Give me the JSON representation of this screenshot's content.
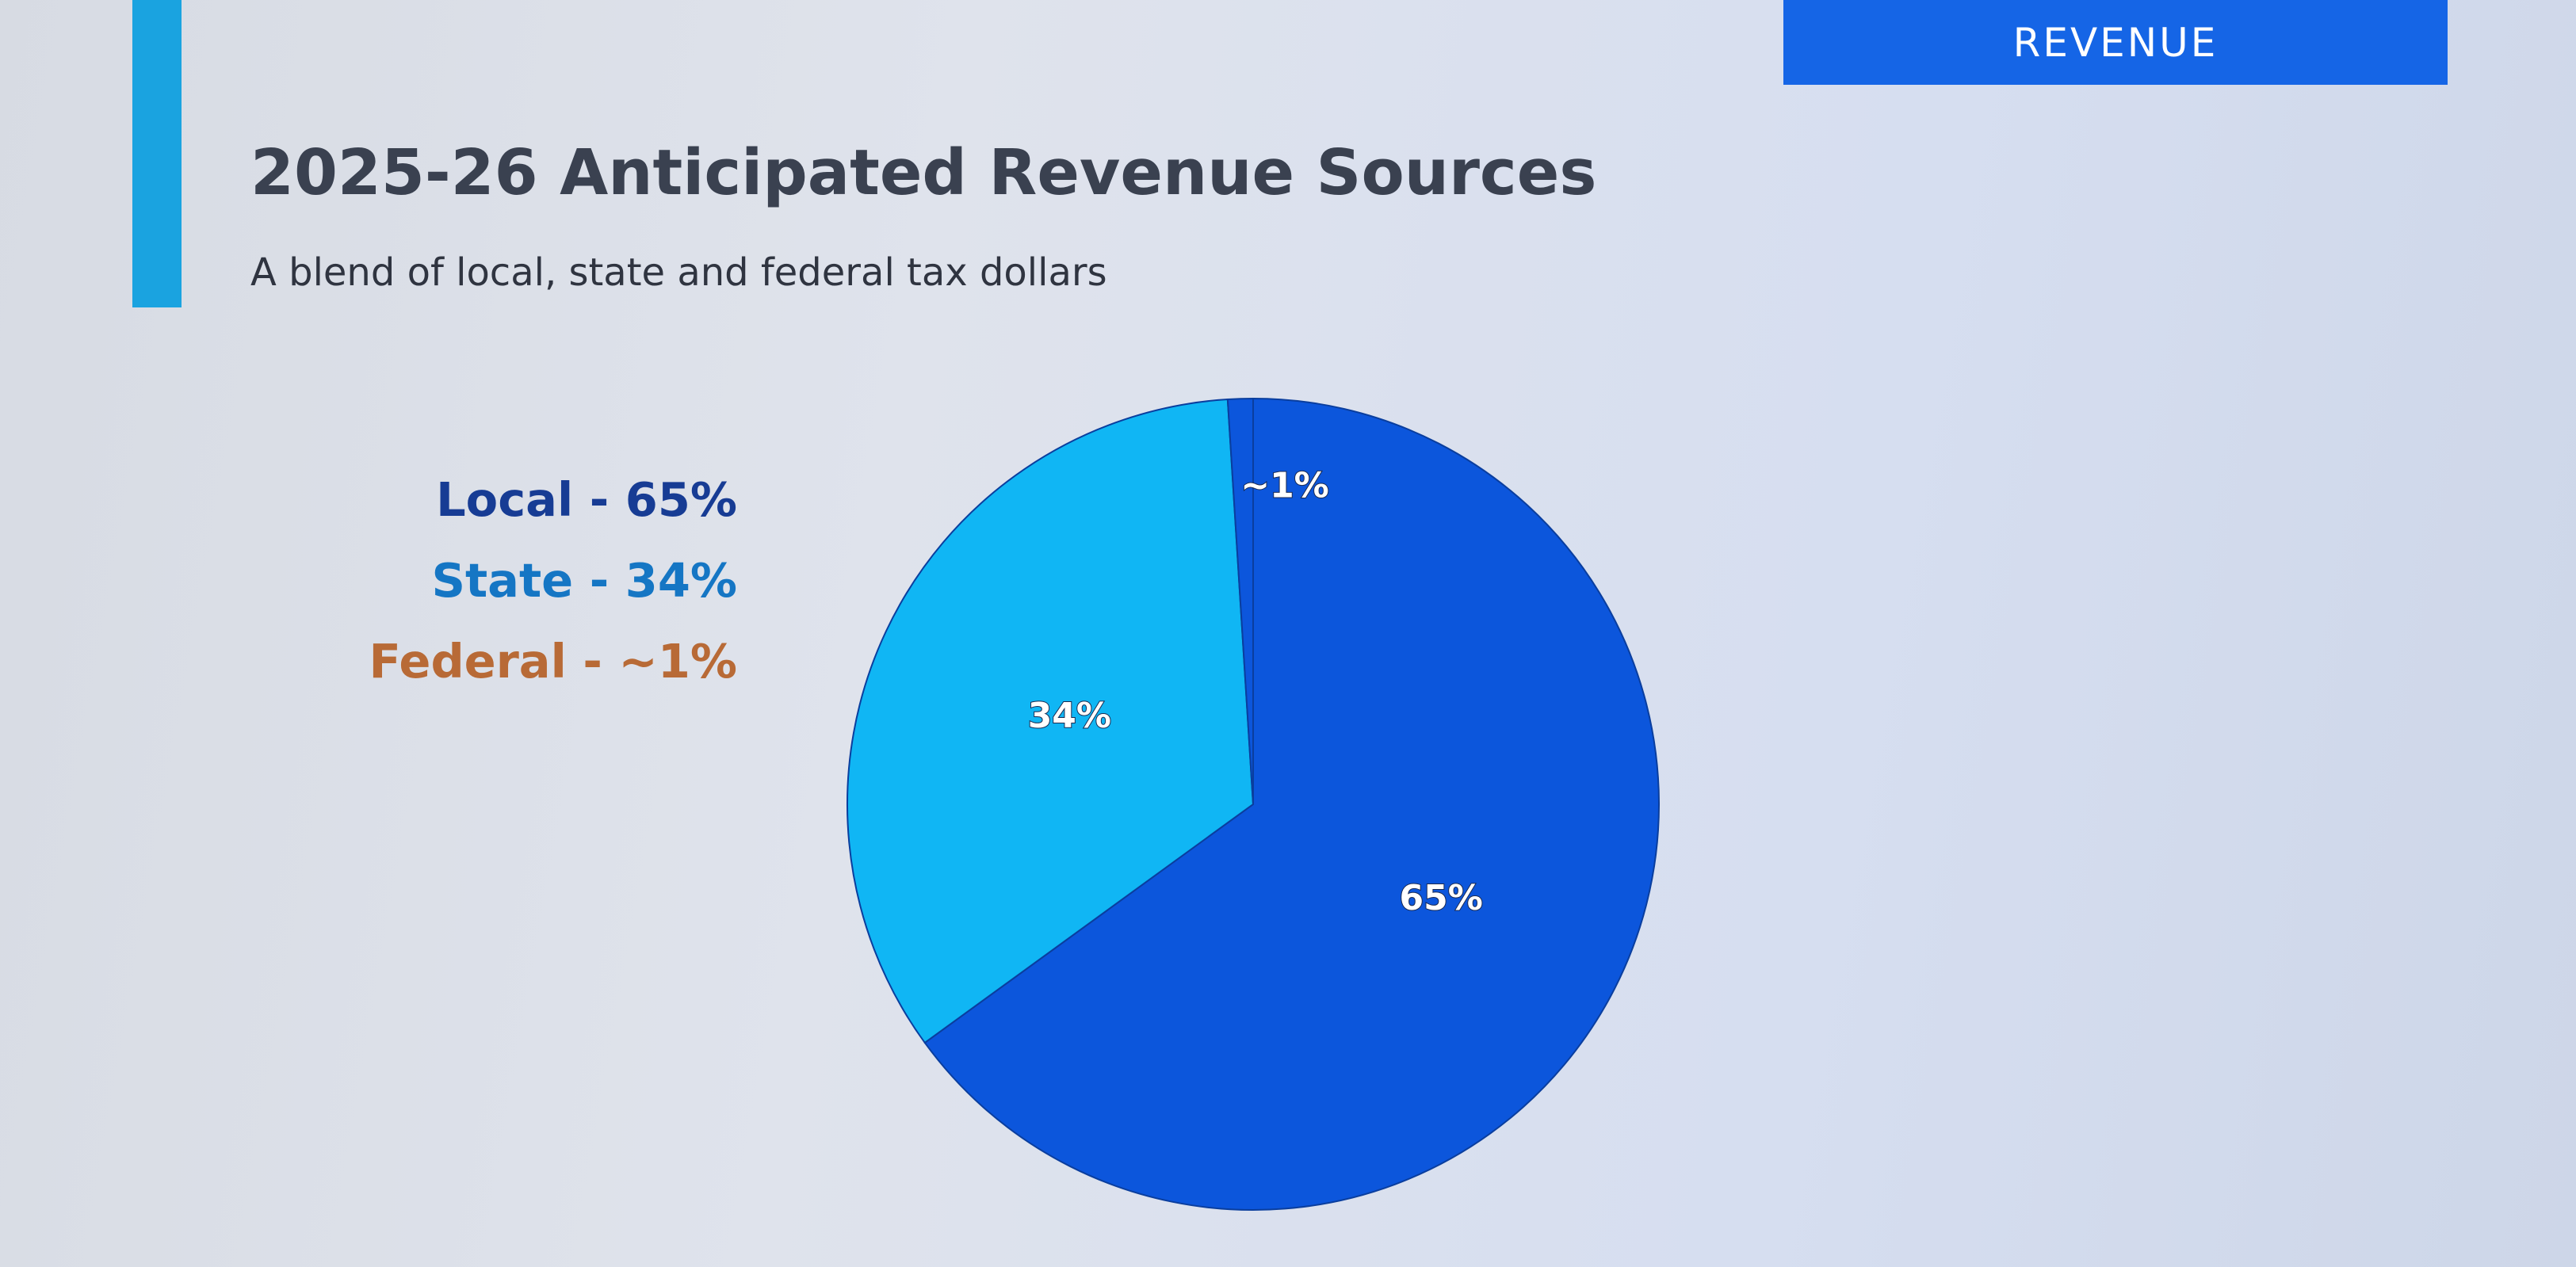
{
  "header": {
    "section_label": "REVENUE",
    "title": "2025-26 Anticipated Revenue Sources",
    "subtitle": "A blend of local, state and federal tax dollars"
  },
  "legend": [
    {
      "text": "Local - 65%",
      "color": "#173c94"
    },
    {
      "text": "State - 34%",
      "color": "#1576c4"
    },
    {
      "text": "Federal - ~1%",
      "color": "#b86a36"
    }
  ],
  "colors": {
    "accent_bar": "#1aa3e0",
    "section_tab": "#1565e6",
    "slice_local": "#0c56dc",
    "slice_state": "#10b6f4",
    "slice_federal": "#0c56dc",
    "slice_border": "#0a3e9e"
  },
  "chart_data": {
    "type": "pie",
    "categories": [
      "Local",
      "State",
      "Federal"
    ],
    "values": [
      65,
      34,
      1
    ],
    "labels": [
      "65%",
      "34%",
      "~1%"
    ],
    "start_angle_deg": 0,
    "direction": "clockwise",
    "legend_position": "left"
  }
}
